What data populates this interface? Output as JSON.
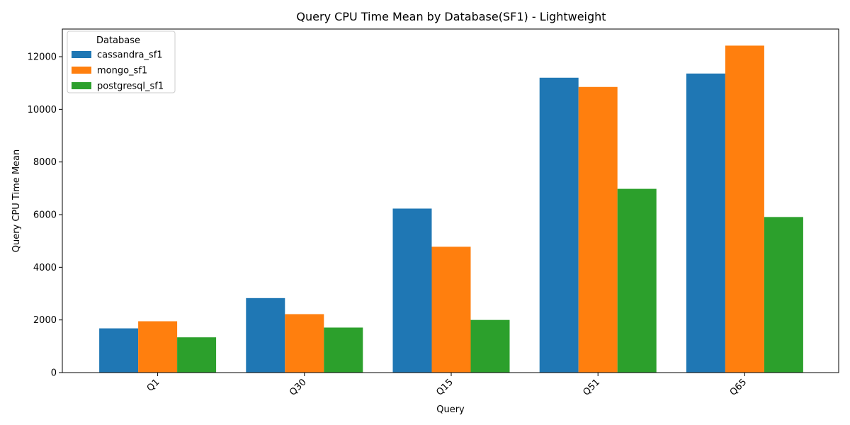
{
  "chart_data": {
    "type": "bar",
    "title": "Query CPU Time Mean by Database(SF1) - Lightweight",
    "xlabel": "Query",
    "ylabel": "Query CPU Time Mean",
    "categories": [
      "Q1",
      "Q30",
      "Q15",
      "Q51",
      "Q65"
    ],
    "series": [
      {
        "name": "cassandra_sf1",
        "color": "#1f77b4",
        "values": [
          1680,
          2830,
          6230,
          11200,
          11360
        ]
      },
      {
        "name": "mongo_sf1",
        "color": "#ff7f0e",
        "values": [
          1950,
          2220,
          4780,
          10850,
          12420
        ]
      },
      {
        "name": "postgresql_sf1",
        "color": "#2ca02c",
        "values": [
          1340,
          1710,
          2000,
          6980,
          5910
        ]
      }
    ],
    "ylim": [
      0,
      13050
    ],
    "yticks": [
      0,
      2000,
      4000,
      6000,
      8000,
      10000,
      12000
    ],
    "legend": {
      "title": "Database",
      "position": "top-left"
    },
    "grid": false
  }
}
